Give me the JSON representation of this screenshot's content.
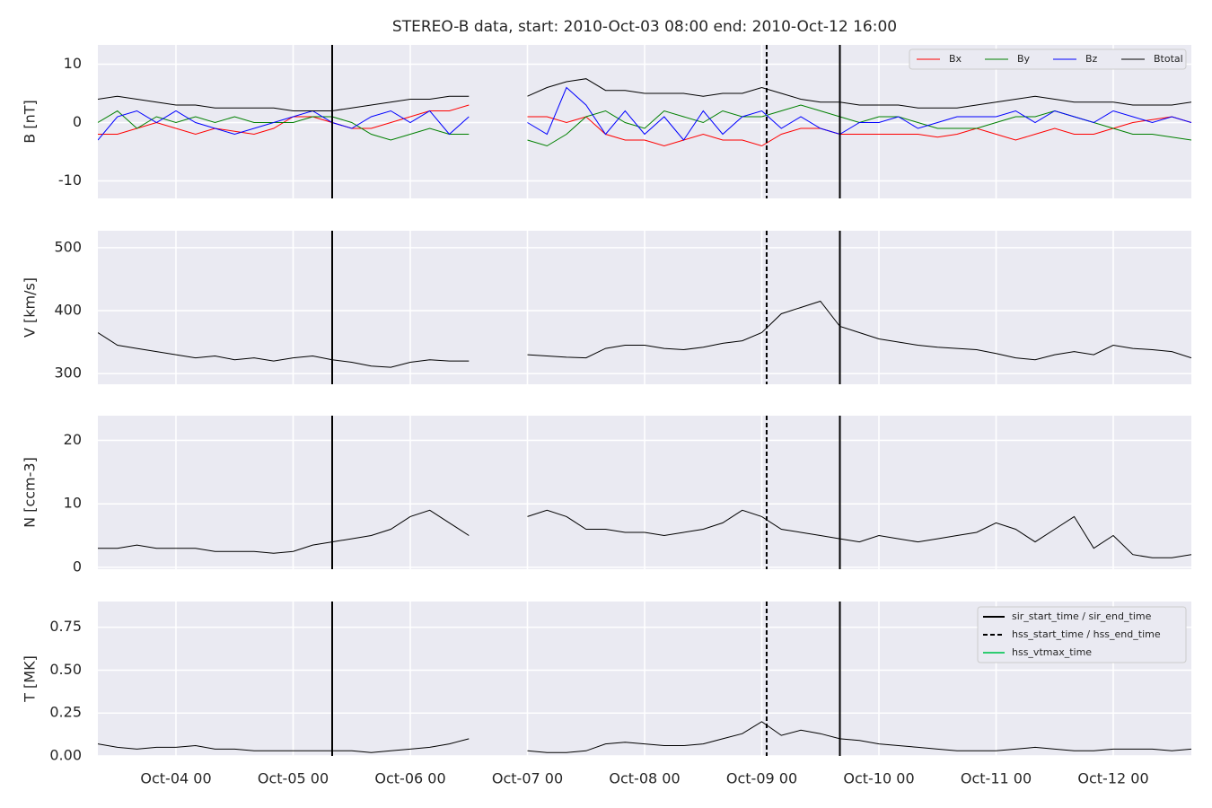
{
  "title": "STEREO-B data, start: 2010-Oct-03 08:00  end: 2010-Oct-12 16:00",
  "x": [
    "Oct-03 08",
    "Oct-03 12",
    "Oct-03 16",
    "Oct-03 20",
    "Oct-04 00",
    "Oct-04 04",
    "Oct-04 08",
    "Oct-04 12",
    "Oct-04 16",
    "Oct-04 20",
    "Oct-05 00",
    "Oct-05 04",
    "Oct-05 08",
    "Oct-05 12",
    "Oct-05 16",
    "Oct-05 20",
    "Oct-06 00",
    "Oct-06 04",
    "Oct-06 08",
    "Oct-06 12",
    "Oct-06 16",
    "Oct-06 20",
    "Oct-07 00",
    "Oct-07 04",
    "Oct-07 08",
    "Oct-07 12",
    "Oct-07 16",
    "Oct-07 20",
    "Oct-08 00",
    "Oct-08 04",
    "Oct-08 08",
    "Oct-08 12",
    "Oct-08 16",
    "Oct-08 20",
    "Oct-09 00",
    "Oct-09 04",
    "Oct-09 08",
    "Oct-09 12",
    "Oct-09 16",
    "Oct-09 20",
    "Oct-10 00",
    "Oct-10 04",
    "Oct-10 08",
    "Oct-10 12",
    "Oct-10 16",
    "Oct-10 20",
    "Oct-11 00",
    "Oct-11 04",
    "Oct-11 08",
    "Oct-11 12",
    "Oct-11 16",
    "Oct-11 20",
    "Oct-12 00",
    "Oct-12 04",
    "Oct-12 08",
    "Oct-12 12",
    "Oct-12 16"
  ],
  "xlim": [
    "Oct-03 08",
    "Oct-12 16"
  ],
  "xticks": [
    "Oct-04 00",
    "Oct-05 00",
    "Oct-06 00",
    "Oct-07 00",
    "Oct-08 00",
    "Oct-09 00",
    "Oct-10 00",
    "Oct-11 00",
    "Oct-12 00"
  ],
  "grid": true,
  "vlines_legend": "upper right",
  "vlines": [
    {
      "name": "sir_start_time / sir_end_time",
      "color": "#000000",
      "style": "solid",
      "times": [
        "Oct-05 08",
        "Oct-09 16"
      ]
    },
    {
      "name": "hss_start_time / hss_end_time",
      "color": "#000000",
      "style": "dashed",
      "times": [
        "Oct-09 01"
      ]
    },
    {
      "name": "hss_vtmax_time",
      "color": "#2ecc71",
      "style": "solid",
      "times": []
    }
  ],
  "chart_data": [
    {
      "type": "line",
      "ylabel": "B [nT]",
      "ylim": [
        -13,
        13.3
      ],
      "yticks": [
        -10,
        0,
        10
      ],
      "legend": "upper right",
      "series": [
        {
          "name": "Bx",
          "color": "#ff0000",
          "values": [
            -2,
            -2,
            -1,
            0,
            -1,
            -2,
            -1,
            -1.5,
            -2,
            -1,
            1,
            1,
            0,
            -1,
            -1,
            0,
            1,
            2,
            2,
            3,
            null,
            null,
            1,
            1,
            0,
            1,
            -2,
            -3,
            -3,
            -4,
            -3,
            -2,
            -3,
            -3,
            -4,
            -2,
            -1,
            -1,
            -2,
            -2,
            -2,
            -2,
            -2,
            -2.5,
            -2,
            -1,
            -2,
            -3,
            -2,
            -1,
            -2,
            -2,
            -1,
            0,
            0.5,
            1,
            0
          ]
        },
        {
          "name": "By",
          "color": "#008000",
          "values": [
            0,
            2,
            -1,
            1,
            0,
            1,
            0,
            1,
            0,
            0,
            0,
            1,
            1,
            0,
            -2,
            -3,
            -2,
            -1,
            -2,
            -2,
            null,
            null,
            -3,
            -4,
            -2,
            1,
            2,
            0,
            -1,
            2,
            1,
            0,
            2,
            1,
            1,
            2,
            3,
            2,
            1,
            0,
            1,
            1,
            0,
            -1,
            -1,
            -1,
            0,
            1,
            1,
            2,
            1,
            0,
            -1,
            -2,
            -2,
            -2.5,
            -3
          ]
        },
        {
          "name": "Bz",
          "color": "#0000ff",
          "values": [
            -3,
            1,
            2,
            0,
            2,
            0,
            -1,
            -2,
            -1,
            0,
            1,
            2,
            0,
            -1,
            1,
            2,
            0,
            2,
            -2,
            1,
            null,
            null,
            0,
            -2,
            6,
            3,
            -2,
            2,
            -2,
            1,
            -3,
            2,
            -2,
            1,
            2,
            -1,
            1,
            -1,
            -2,
            0,
            0,
            1,
            -1,
            0,
            1,
            1,
            1,
            2,
            0,
            2,
            1,
            0,
            2,
            1,
            0,
            1,
            0
          ]
        },
        {
          "name": "Btotal",
          "color": "#000000",
          "values": [
            4,
            4.5,
            4,
            3.5,
            3,
            3,
            2.5,
            2.5,
            2.5,
            2.5,
            2,
            2,
            2,
            2.5,
            3,
            3.5,
            4,
            4,
            4.5,
            4.5,
            null,
            null,
            4.5,
            6,
            7,
            7.5,
            5.5,
            5.5,
            5,
            5,
            5,
            4.5,
            5,
            5,
            6,
            5,
            4,
            3.5,
            3.5,
            3,
            3,
            3,
            2.5,
            2.5,
            2.5,
            3,
            3.5,
            4,
            4.5,
            4,
            3.5,
            3.5,
            3.5,
            3,
            3,
            3,
            3.5
          ]
        }
      ]
    },
    {
      "type": "line",
      "ylabel": "V [km/s]",
      "ylim": [
        283,
        527
      ],
      "yticks": [
        300,
        400,
        500
      ],
      "color": "#000000",
      "values": [
        365,
        345,
        340,
        335,
        330,
        325,
        328,
        322,
        325,
        320,
        325,
        328,
        322,
        318,
        312,
        310,
        318,
        322,
        320,
        320,
        null,
        null,
        330,
        328,
        326,
        325,
        340,
        345,
        345,
        340,
        338,
        342,
        348,
        352,
        365,
        395,
        405,
        415,
        375,
        365,
        355,
        350,
        345,
        342,
        340,
        338,
        332,
        325,
        322,
        330,
        335,
        330,
        345,
        340,
        338,
        335,
        325
      ]
    },
    {
      "type": "line",
      "ylabel": "N [ccm-3]",
      "ylim": [
        -0.3,
        23.9
      ],
      "yticks": [
        0,
        10,
        20
      ],
      "color": "#000000",
      "values": [
        3,
        3,
        3.5,
        3,
        3,
        3,
        2.5,
        2.5,
        2.5,
        2.2,
        2.5,
        3.5,
        4,
        4.5,
        5,
        6,
        8,
        9,
        7,
        5,
        null,
        null,
        8,
        9,
        8,
        6,
        6,
        5.5,
        5.5,
        5,
        5.5,
        6,
        7,
        9,
        8,
        6,
        5.5,
        5,
        4.5,
        4,
        5,
        4.5,
        4,
        4.5,
        5,
        5.5,
        7,
        6,
        4,
        6,
        8,
        3,
        5,
        2,
        1.5,
        1.5,
        2
      ]
    },
    {
      "type": "line",
      "ylabel": "T [MK]",
      "ylim": [
        0,
        0.9
      ],
      "yticks": [
        {
          "value": 0,
          "label": "0.00"
        },
        0.25,
        {
          "value": 0.5,
          "label": "0.50"
        },
        0.75
      ],
      "color": "#000000",
      "values": [
        0.07,
        0.05,
        0.04,
        0.05,
        0.05,
        0.06,
        0.04,
        0.04,
        0.03,
        0.03,
        0.03,
        0.03,
        0.03,
        0.03,
        0.02,
        0.03,
        0.04,
        0.05,
        0.07,
        0.1,
        null,
        null,
        0.03,
        0.02,
        0.02,
        0.03,
        0.07,
        0.08,
        0.07,
        0.06,
        0.06,
        0.07,
        0.1,
        0.13,
        0.2,
        0.12,
        0.15,
        0.13,
        0.1,
        0.09,
        0.07,
        0.06,
        0.05,
        0.04,
        0.03,
        0.03,
        0.03,
        0.04,
        0.05,
        0.04,
        0.03,
        0.03,
        0.04,
        0.04,
        0.04,
        0.03,
        0.04
      ]
    }
  ]
}
